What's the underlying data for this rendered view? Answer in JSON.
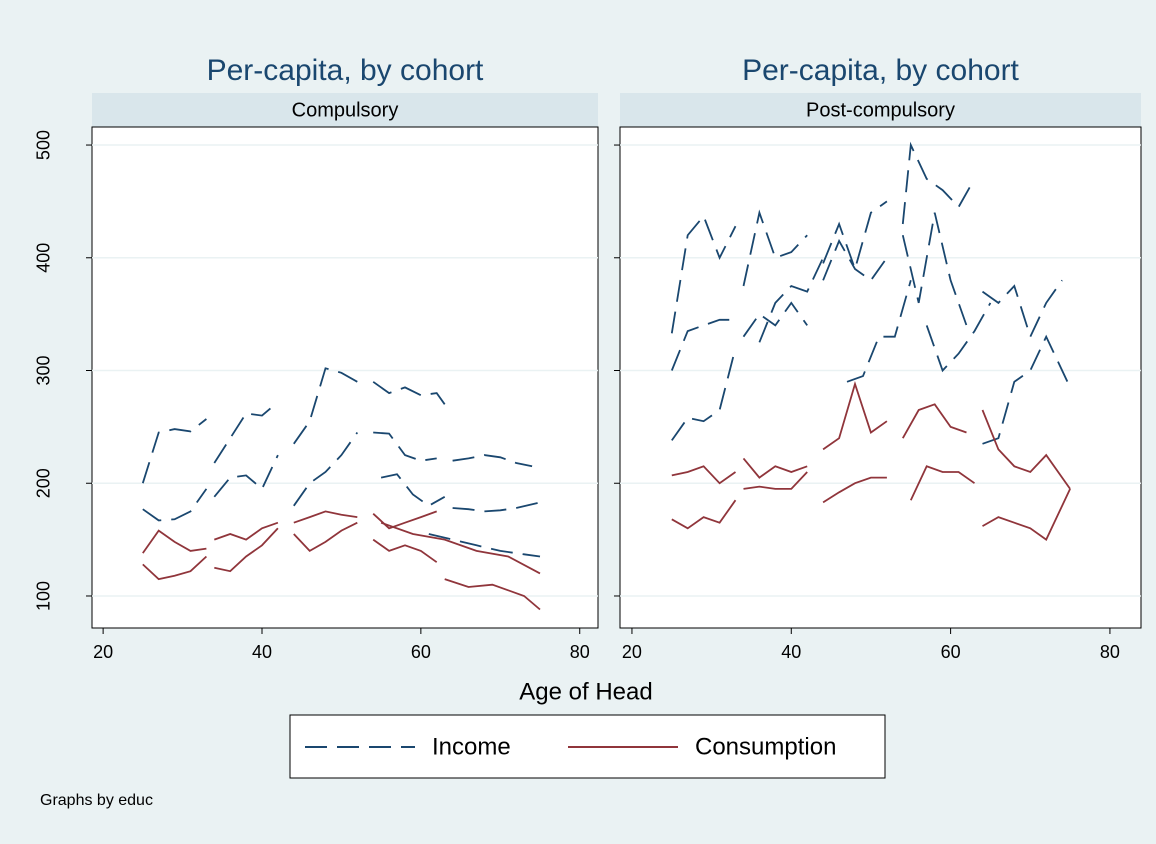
{
  "x_axis_title": "Age of Head",
  "legend": {
    "position": "bottom",
    "items": [
      "Income",
      "Consumption"
    ]
  },
  "note": "Graphs by educ",
  "chart_data": [
    {
      "type": "line",
      "title": "Per-capita, by cohort",
      "subtitle": "Compulsory",
      "xlim": [
        18.6,
        82.3
      ],
      "xticks": [
        20,
        40,
        60,
        80
      ],
      "ylim": [
        71.6,
        516
      ],
      "yticks": [
        100,
        200,
        300,
        400,
        500
      ],
      "show_ytick_labels": true,
      "grid": true,
      "series": [
        {
          "color": "#1a476f",
          "dashed": true,
          "lines": [
            {
              "x": [
                25,
                27,
                29,
                31,
                33
              ],
              "values": [
                200,
                245,
                248,
                246,
                257
              ]
            },
            {
              "x": [
                34,
                36,
                38,
                40,
                42
              ],
              "values": [
                218,
                240,
                262,
                260,
                272
              ]
            },
            {
              "x": [
                44,
                46,
                48,
                50,
                52
              ],
              "values": [
                235,
                255,
                302,
                298,
                290
              ]
            },
            {
              "x": [
                54,
                56,
                58,
                60,
                62,
                63
              ],
              "values": [
                290,
                280,
                285,
                278,
                280,
                270
              ]
            },
            {
              "x": [
                25,
                27,
                29,
                31,
                33
              ],
              "values": [
                177,
                167,
                168,
                175,
                195
              ]
            },
            {
              "x": [
                34,
                36,
                38,
                40,
                42
              ],
              "values": [
                188,
                205,
                207,
                195,
                225
              ]
            },
            {
              "x": [
                44,
                46,
                48,
                50,
                52
              ],
              "values": [
                180,
                200,
                210,
                225,
                245
              ]
            },
            {
              "x": [
                54,
                56,
                58,
                60,
                62
              ],
              "values": [
                245,
                244,
                225,
                220,
                222
              ]
            },
            {
              "x": [
                64,
                66,
                68,
                70,
                72,
                74
              ],
              "values": [
                220,
                222,
                225,
                223,
                218,
                215
              ]
            },
            {
              "x": [
                55,
                57,
                59,
                61,
                63
              ],
              "values": [
                205,
                208,
                190,
                180,
                188
              ]
            },
            {
              "x": [
                64,
                66,
                68,
                70,
                72,
                75
              ],
              "values": [
                178,
                177,
                175,
                176,
                178,
                183
              ]
            },
            {
              "x": [
                61,
                64,
                67,
                70,
                73,
                75
              ],
              "values": [
                155,
                150,
                145,
                140,
                137,
                135
              ]
            }
          ]
        },
        {
          "color": "#90353b",
          "dashed": false,
          "lines": [
            {
              "x": [
                25,
                27,
                29,
                31,
                33
              ],
              "values": [
                138,
                158,
                148,
                140,
                142
              ]
            },
            {
              "x": [
                34,
                36,
                38,
                40,
                42
              ],
              "values": [
                150,
                155,
                150,
                160,
                165
              ]
            },
            {
              "x": [
                44,
                46,
                48,
                50,
                52
              ],
              "values": [
                165,
                170,
                175,
                172,
                170
              ]
            },
            {
              "x": [
                54,
                56,
                58,
                60,
                62
              ],
              "values": [
                173,
                160,
                165,
                170,
                175
              ]
            },
            {
              "x": [
                25,
                27,
                29,
                31,
                33
              ],
              "values": [
                128,
                115,
                118,
                122,
                135
              ]
            },
            {
              "x": [
                34,
                36,
                38,
                40,
                42
              ],
              "values": [
                125,
                122,
                135,
                145,
                160
              ]
            },
            {
              "x": [
                44,
                46,
                48,
                50,
                52
              ],
              "values": [
                155,
                140,
                148,
                158,
                165
              ]
            },
            {
              "x": [
                54,
                56,
                58,
                60,
                62
              ],
              "values": [
                150,
                140,
                145,
                140,
                130
              ]
            },
            {
              "x": [
                55,
                59,
                63,
                67,
                71,
                75
              ],
              "values": [
                165,
                155,
                150,
                140,
                135,
                120
              ]
            },
            {
              "x": [
                63,
                66,
                69,
                71,
                73,
                75
              ],
              "values": [
                115,
                108,
                110,
                105,
                100,
                88
              ]
            }
          ]
        }
      ]
    },
    {
      "type": "line",
      "title": "Per-capita, by cohort",
      "subtitle": "Post-compulsory",
      "xlim": [
        18.5,
        83.9
      ],
      "xticks": [
        20,
        40,
        60,
        80
      ],
      "ylim": [
        71.6,
        516
      ],
      "yticks": [
        100,
        200,
        300,
        400,
        500
      ],
      "show_ytick_labels": false,
      "grid": true,
      "series": [
        {
          "color": "#1a476f",
          "dashed": true,
          "lines": [
            {
              "x": [
                25,
                27,
                29,
                31,
                33
              ],
              "values": [
                333,
                420,
                437,
                400,
                428
              ]
            },
            {
              "x": [
                34,
                36,
                38,
                40,
                42
              ],
              "values": [
                375,
                440,
                400,
                405,
                420
              ]
            },
            {
              "x": [
                44,
                46,
                48,
                50,
                52
              ],
              "values": [
                395,
                430,
                390,
                440,
                450
              ]
            },
            {
              "x": [
                54,
                55,
                57,
                59,
                61,
                63
              ],
              "values": [
                430,
                500,
                470,
                460,
                445,
                470
              ]
            },
            {
              "x": [
                25,
                27,
                29,
                31,
                33
              ],
              "values": [
                300,
                335,
                340,
                345,
                345
              ]
            },
            {
              "x": [
                34,
                36,
                38,
                40,
                42
              ],
              "values": [
                330,
                350,
                340,
                360,
                340
              ]
            },
            {
              "x": [
                44,
                46,
                48,
                50,
                52
              ],
              "values": [
                380,
                415,
                390,
                380,
                400
              ]
            },
            {
              "x": [
                54,
                56,
                58,
                60,
                62
              ],
              "values": [
                420,
                360,
                440,
                380,
                340
              ]
            },
            {
              "x": [
                64,
                66,
                68,
                70,
                72,
                74
              ],
              "values": [
                370,
                360,
                375,
                330,
                360,
                380
              ]
            },
            {
              "x": [
                25,
                27,
                29,
                31,
                33
              ],
              "values": [
                238,
                258,
                255,
                265,
                320
              ]
            },
            {
              "x": [
                36,
                38,
                40,
                42,
                44
              ],
              "values": [
                325,
                360,
                375,
                370,
                400
              ]
            },
            {
              "x": [
                47,
                49,
                51,
                53,
                55
              ],
              "values": [
                290,
                295,
                330,
                330,
                380
              ]
            },
            {
              "x": [
                57,
                59,
                61,
                63,
                65
              ],
              "values": [
                340,
                300,
                315,
                335,
                360
              ]
            },
            {
              "x": [
                64,
                66,
                68,
                70,
                72,
                75
              ],
              "values": [
                235,
                240,
                290,
                300,
                330,
                285
              ]
            }
          ]
        },
        {
          "color": "#90353b",
          "dashed": false,
          "lines": [
            {
              "x": [
                25,
                27,
                29,
                31,
                33
              ],
              "values": [
                207,
                210,
                215,
                200,
                210
              ]
            },
            {
              "x": [
                34,
                36,
                38,
                40,
                42
              ],
              "values": [
                222,
                205,
                215,
                210,
                215
              ]
            },
            {
              "x": [
                44,
                46,
                48,
                50,
                52
              ],
              "values": [
                230,
                240,
                288,
                245,
                255
              ]
            },
            {
              "x": [
                54,
                56,
                58,
                60,
                62
              ],
              "values": [
                240,
                265,
                270,
                250,
                245
              ]
            },
            {
              "x": [
                64,
                66,
                68,
                70,
                72,
                75
              ],
              "values": [
                265,
                230,
                215,
                210,
                225,
                195
              ]
            },
            {
              "x": [
                25,
                27,
                29,
                31,
                33
              ],
              "values": [
                168,
                160,
                170,
                165,
                185
              ]
            },
            {
              "x": [
                34,
                36,
                38,
                40,
                42
              ],
              "values": [
                195,
                197,
                195,
                195,
                210
              ]
            },
            {
              "x": [
                44,
                46,
                48,
                50,
                52
              ],
              "values": [
                183,
                192,
                200,
                205,
                205
              ]
            },
            {
              "x": [
                55,
                57,
                59,
                61,
                63
              ],
              "values": [
                185,
                215,
                210,
                210,
                200
              ]
            },
            {
              "x": [
                64,
                66,
                68,
                70,
                72,
                75
              ],
              "values": [
                162,
                170,
                165,
                160,
                150,
                195
              ]
            }
          ]
        }
      ]
    }
  ]
}
